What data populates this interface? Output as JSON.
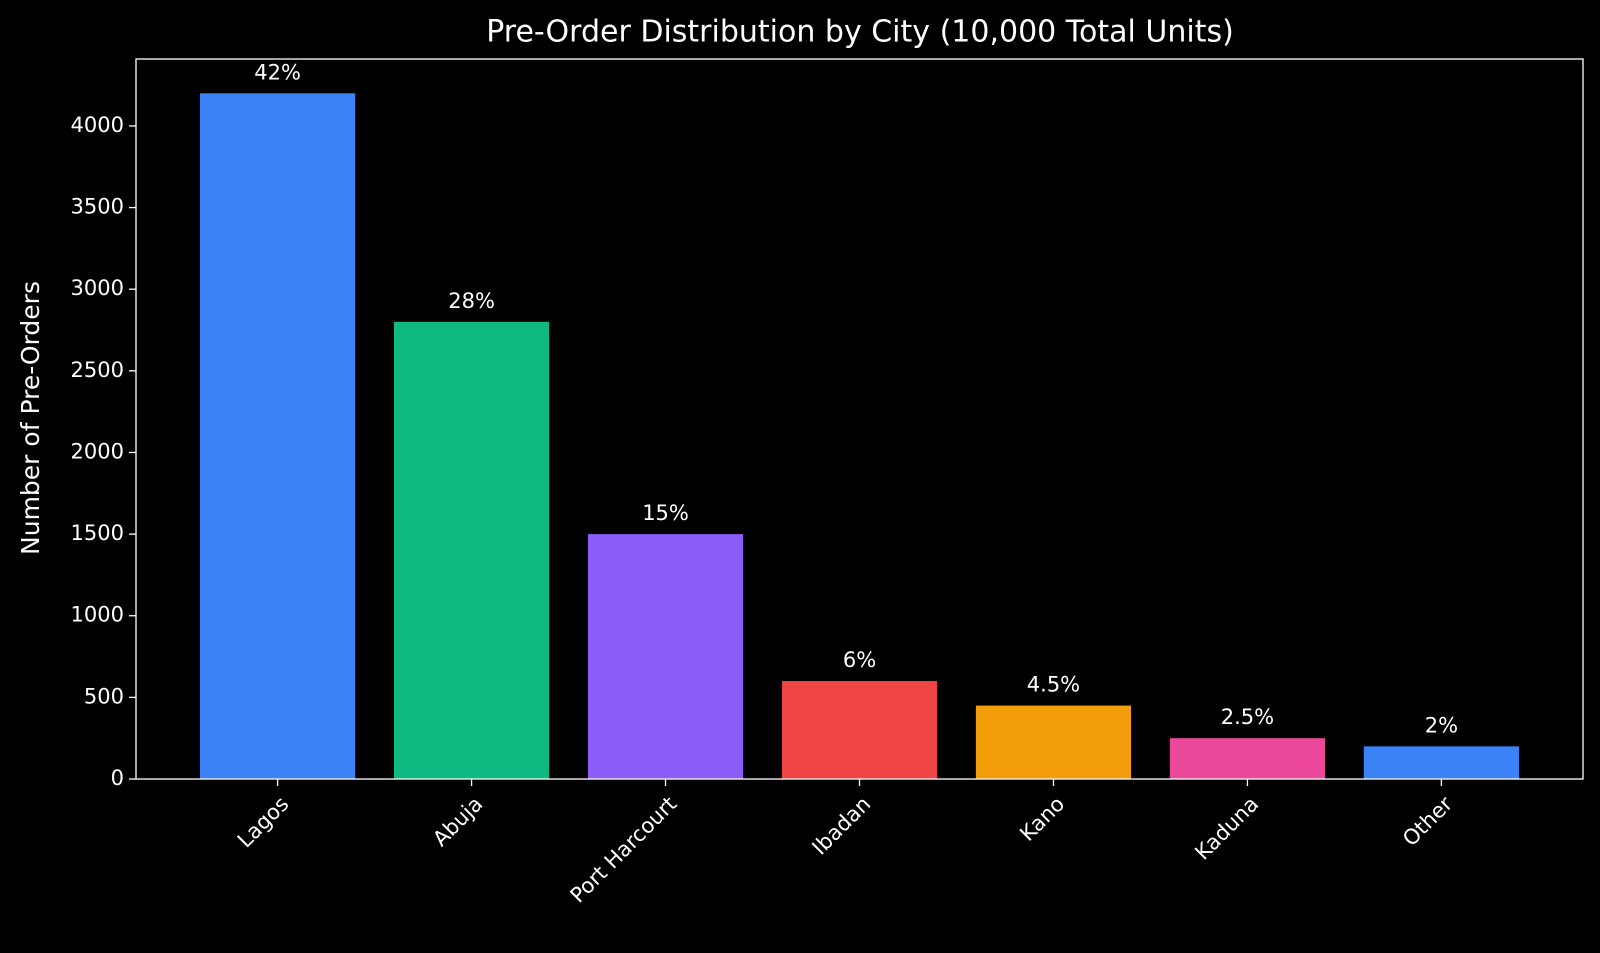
{
  "chart_data": {
    "type": "bar",
    "title": "Pre-Order Distribution by City (10,000 Total Units)",
    "y_label": "Number of Pre-Orders",
    "categories": [
      "Lagos",
      "Abuja",
      "Port Harcourt",
      "Ibadan",
      "Kano",
      "Kaduna",
      "Other"
    ],
    "values": [
      4200,
      2800,
      1500,
      600,
      450,
      250,
      200
    ],
    "value_labels": [
      "42%",
      "28%",
      "15%",
      "6%",
      "4.5%",
      "2.5%",
      "2%"
    ],
    "colors": [
      "#3b82f6",
      "#10b981",
      "#8b5cf6",
      "#ef4444",
      "#f59e0b",
      "#ec4899",
      "#3b82f6"
    ],
    "ylim": [
      0,
      4410
    ],
    "yticks": [
      0,
      500,
      1000,
      1500,
      2000,
      2500,
      3000,
      3500,
      4000
    ],
    "grid": false
  }
}
